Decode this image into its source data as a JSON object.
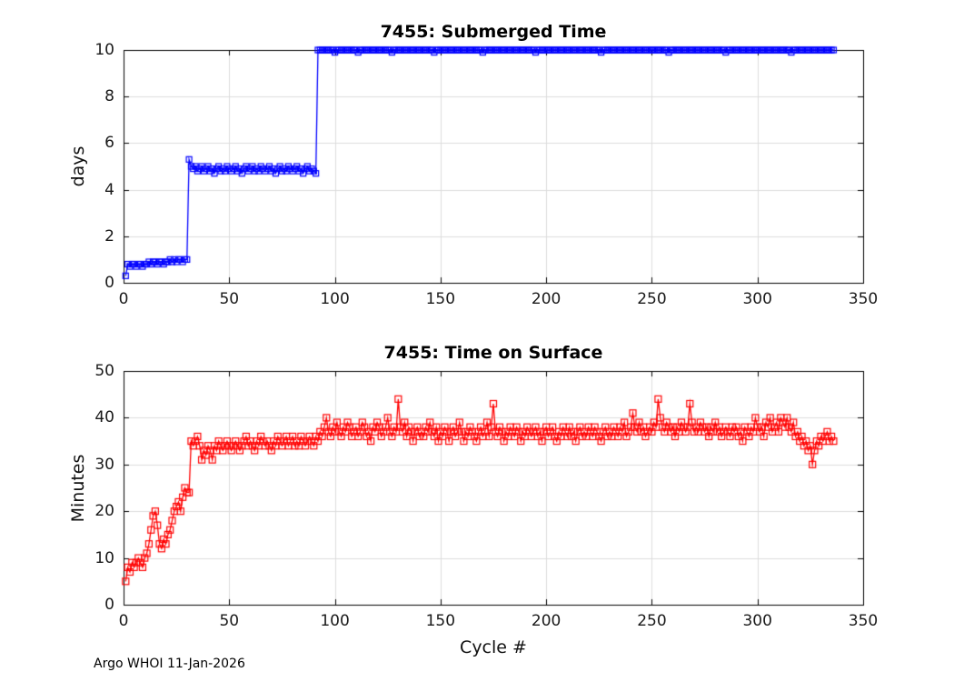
{
  "figure": {
    "footer": "Argo WHOI 11-Jan-2026"
  },
  "chart_data": [
    {
      "type": "line",
      "title": "7455: Submerged Time",
      "xlabel": "",
      "ylabel": "days",
      "series_name": "submerged-time-days",
      "color": "#0000ff",
      "marker": "open-square",
      "grid": true,
      "xlim": [
        0,
        350
      ],
      "ylim": [
        0,
        10
      ],
      "xticks": [
        0,
        50,
        100,
        150,
        200,
        250,
        300,
        350
      ],
      "yticks": [
        0,
        2,
        4,
        6,
        8,
        10
      ],
      "x_start": 1,
      "x_step": 1,
      "y": [
        0.3,
        0.8,
        0.7,
        0.8,
        0.8,
        0.7,
        0.8,
        0.8,
        0.7,
        0.8,
        0.8,
        0.9,
        0.8,
        0.9,
        0.9,
        0.8,
        0.9,
        0.9,
        0.8,
        0.9,
        0.9,
        1.0,
        0.9,
        1.0,
        0.9,
        1.0,
        1.0,
        0.9,
        1.0,
        1.0,
        5.3,
        5.0,
        4.9,
        5.0,
        4.8,
        4.9,
        5.0,
        4.8,
        4.9,
        5.0,
        4.8,
        4.9,
        4.7,
        4.9,
        5.0,
        4.8,
        4.9,
        4.8,
        5.0,
        4.9,
        4.8,
        4.9,
        5.0,
        4.8,
        4.9,
        4.7,
        4.9,
        5.0,
        4.8,
        4.9,
        5.0,
        4.8,
        4.9,
        4.8,
        5.0,
        4.9,
        4.8,
        4.9,
        5.0,
        4.8,
        4.9,
        4.7,
        4.9,
        5.0,
        4.8,
        4.9,
        4.8,
        5.0,
        4.9,
        4.8,
        4.9,
        5.0,
        4.8,
        4.9,
        4.7,
        4.9,
        5.0,
        4.8,
        4.9,
        4.8,
        4.7,
        10,
        10,
        10,
        10,
        10,
        10,
        10,
        10,
        9.9,
        10,
        10,
        10,
        10,
        10,
        10,
        10,
        10,
        10,
        10,
        9.9,
        10,
        10,
        10,
        10,
        10,
        10,
        10,
        10,
        10,
        10,
        10,
        10,
        10,
        10,
        10,
        9.9,
        10,
        10,
        10,
        10,
        10,
        10,
        10,
        10,
        10,
        10,
        10,
        10,
        10,
        10,
        10,
        10,
        10,
        10,
        10,
        9.9,
        10,
        10,
        10,
        10,
        10,
        10,
        10,
        10,
        10,
        10,
        10,
        10,
        10,
        10,
        10,
        10,
        10,
        10,
        10,
        10,
        10,
        10,
        9.9,
        10,
        10,
        10,
        10,
        10,
        10,
        10,
        10,
        10,
        10,
        10,
        10,
        10,
        10,
        10,
        10,
        10,
        10,
        10,
        10,
        10,
        10,
        10,
        10,
        9.9,
        10,
        10,
        10,
        10,
        10,
        10,
        10,
        10,
        10,
        10,
        10,
        10,
        10,
        10,
        10,
        10,
        10,
        10,
        10,
        10,
        10,
        10,
        10,
        10,
        10,
        10,
        10,
        10,
        10,
        10,
        9.9,
        10,
        10,
        10,
        10,
        10,
        10,
        10,
        10,
        10,
        10,
        10,
        10,
        10,
        10,
        10,
        10,
        10,
        10,
        10,
        10,
        10,
        10,
        10,
        10,
        10,
        10,
        10,
        10,
        10,
        10,
        10,
        9.9,
        10,
        10,
        10,
        10,
        10,
        10,
        10,
        10,
        10,
        10,
        10,
        10,
        10,
        10,
        10,
        10,
        10,
        10,
        10,
        10,
        10,
        10,
        10,
        10,
        10,
        10,
        9.9,
        10,
        10,
        10,
        10,
        10,
        10,
        10,
        10,
        10,
        10,
        10,
        10,
        10,
        10,
        10,
        10,
        10,
        10,
        10,
        10,
        10,
        10,
        10,
        10,
        10,
        10,
        10,
        10,
        10,
        10,
        9.9,
        10,
        10,
        10,
        10,
        10,
        10,
        10,
        10,
        10,
        10,
        10,
        10,
        10,
        10,
        10,
        10,
        10,
        10,
        10,
        10
      ]
    },
    {
      "type": "line",
      "title": "7455: Time on Surface",
      "xlabel": "Cycle #",
      "ylabel": "Minutes",
      "series_name": "time-on-surface-minutes",
      "color": "#ff0000",
      "marker": "open-square",
      "grid": true,
      "xlim": [
        0,
        350
      ],
      "ylim": [
        0,
        50
      ],
      "xticks": [
        0,
        50,
        100,
        150,
        200,
        250,
        300,
        350
      ],
      "yticks": [
        0,
        10,
        20,
        30,
        40,
        50
      ],
      "x_start": 1,
      "x_step": 1,
      "y": [
        5,
        8,
        7,
        9,
        8,
        9,
        10,
        9,
        8,
        10,
        11,
        13,
        16,
        19,
        20,
        17,
        13,
        12,
        14,
        13,
        15,
        16,
        18,
        20,
        21,
        22,
        20,
        23,
        25,
        24,
        24,
        35,
        34,
        35,
        36,
        34,
        31,
        33,
        32,
        34,
        33,
        31,
        34,
        33,
        35,
        34,
        33,
        34,
        35,
        34,
        33,
        34,
        35,
        34,
        33,
        34,
        35,
        36,
        34,
        35,
        34,
        33,
        35,
        34,
        36,
        35,
        34,
        35,
        34,
        33,
        35,
        34,
        36,
        35,
        34,
        35,
        36,
        34,
        35,
        36,
        34,
        35,
        34,
        36,
        35,
        34,
        35,
        36,
        35,
        34,
        36,
        35,
        37,
        36,
        38,
        40,
        37,
        36,
        38,
        37,
        39,
        37,
        36,
        38,
        37,
        39,
        38,
        36,
        37,
        38,
        36,
        37,
        39,
        38,
        36,
        37,
        35,
        38,
        37,
        39,
        38,
        36,
        37,
        38,
        40,
        37,
        36,
        38,
        37,
        44,
        38,
        37,
        39,
        36,
        38,
        37,
        35,
        37,
        38,
        36,
        37,
        36,
        38,
        37,
        39,
        37,
        36,
        38,
        35,
        37,
        36,
        38,
        37,
        35,
        37,
        38,
        36,
        37,
        39,
        37,
        35,
        37,
        36,
        38,
        37,
        36,
        35,
        37,
        38,
        36,
        37,
        39,
        36,
        38,
        43,
        37,
        36,
        38,
        37,
        35,
        37,
        36,
        38,
        37,
        36,
        38,
        37,
        35,
        37,
        36,
        38,
        37,
        36,
        37,
        38,
        36,
        37,
        35,
        37,
        38,
        36,
        37,
        38,
        36,
        35,
        37,
        36,
        38,
        37,
        36,
        38,
        36,
        37,
        35,
        37,
        38,
        36,
        37,
        36,
        38,
        37,
        36,
        38,
        37,
        36,
        35,
        37,
        38,
        36,
        37,
        36,
        38,
        37,
        36,
        38,
        37,
        39,
        36,
        37,
        38,
        41,
        38,
        37,
        39,
        37,
        38,
        36,
        37,
        38,
        37,
        39,
        38,
        44,
        40,
        38,
        37,
        39,
        38,
        37,
        38,
        36,
        38,
        37,
        39,
        38,
        37,
        38,
        43,
        39,
        37,
        38,
        37,
        39,
        38,
        37,
        38,
        36,
        38,
        37,
        39,
        37,
        38,
        36,
        37,
        38,
        37,
        36,
        38,
        37,
        38,
        36,
        37,
        35,
        38,
        37,
        36,
        38,
        37,
        40,
        38,
        37,
        38,
        36,
        39,
        38,
        40,
        37,
        38,
        39,
        37,
        40,
        39,
        38,
        40,
        38,
        37,
        39,
        36,
        37,
        35,
        36,
        34,
        35,
        33,
        34,
        30,
        33,
        35,
        34,
        36,
        35,
        36,
        37,
        35,
        36,
        35
      ]
    }
  ]
}
